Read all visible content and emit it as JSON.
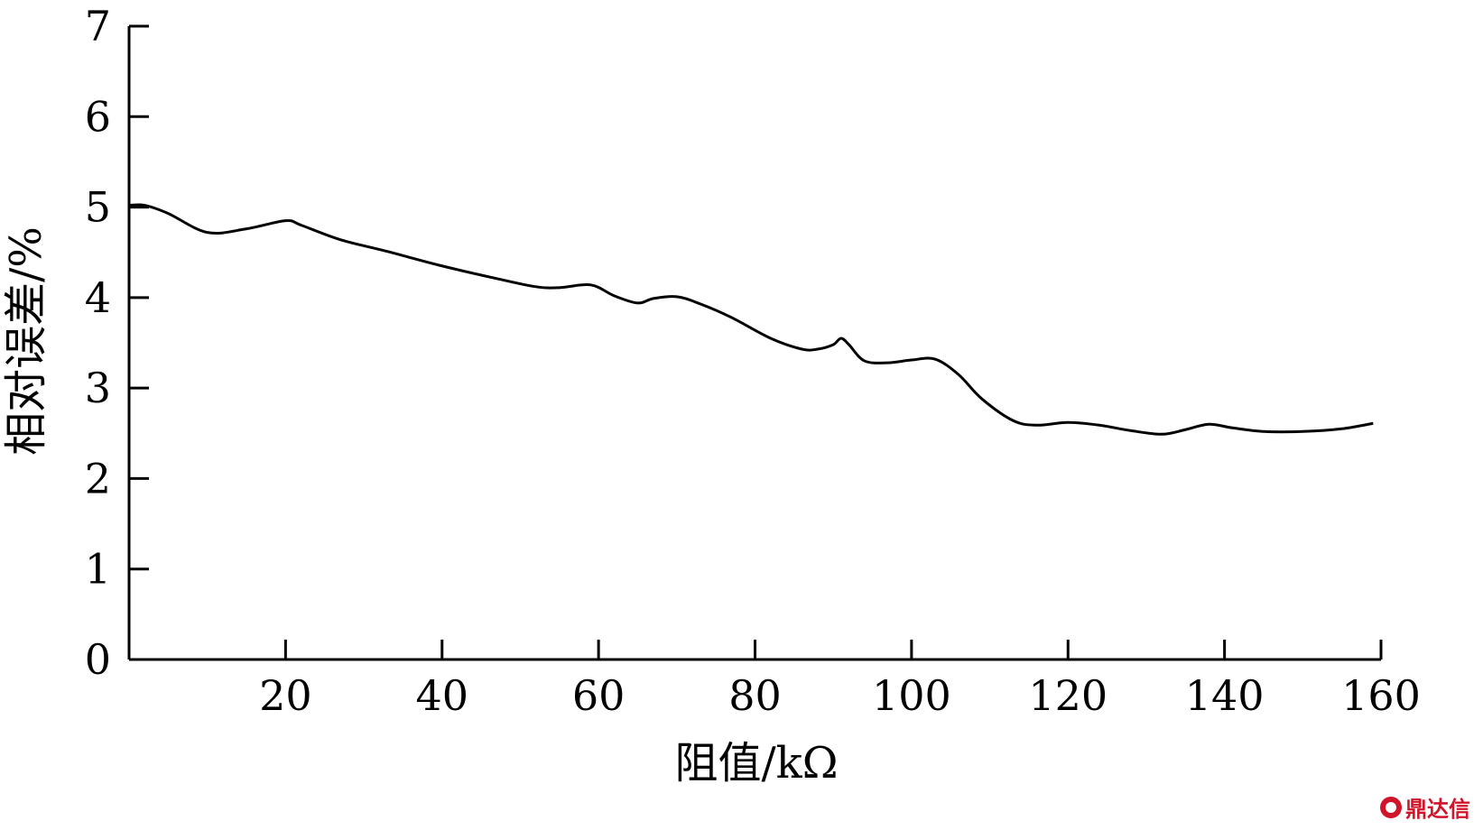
{
  "chart_data": {
    "type": "line",
    "title": "",
    "xlabel": "阻值/kΩ",
    "ylabel": "相对误差/%",
    "xlim": [
      0,
      160
    ],
    "ylim": [
      0,
      7
    ],
    "xticks": [
      20,
      40,
      60,
      80,
      100,
      120,
      140,
      160
    ],
    "yticks": [
      0,
      1,
      2,
      3,
      4,
      5,
      6,
      7
    ],
    "grid": false,
    "series": [
      {
        "x": [
          0,
          2,
          5,
          10,
          15,
          20,
          22,
          27,
          33,
          40,
          47,
          52,
          55,
          59,
          62,
          65,
          67,
          70,
          73,
          77,
          82,
          86,
          88,
          90,
          91,
          92,
          94,
          97,
          100,
          103,
          106,
          109,
          113,
          116,
          120,
          124,
          128,
          132,
          135,
          138,
          141,
          145,
          150,
          155,
          159
        ],
        "y": [
          5.02,
          5.02,
          4.93,
          4.72,
          4.76,
          4.85,
          4.8,
          4.64,
          4.51,
          4.35,
          4.21,
          4.12,
          4.11,
          4.14,
          4.02,
          3.94,
          3.99,
          4.01,
          3.93,
          3.78,
          3.55,
          3.43,
          3.43,
          3.48,
          3.55,
          3.48,
          3.3,
          3.28,
          3.31,
          3.32,
          3.15,
          2.88,
          2.64,
          2.59,
          2.62,
          2.59,
          2.53,
          2.49,
          2.54,
          2.6,
          2.56,
          2.52,
          2.52,
          2.55,
          2.61
        ],
        "color": "#000000"
      }
    ]
  },
  "watermark": {
    "text": "鼎达信",
    "color": "#d0152a"
  }
}
